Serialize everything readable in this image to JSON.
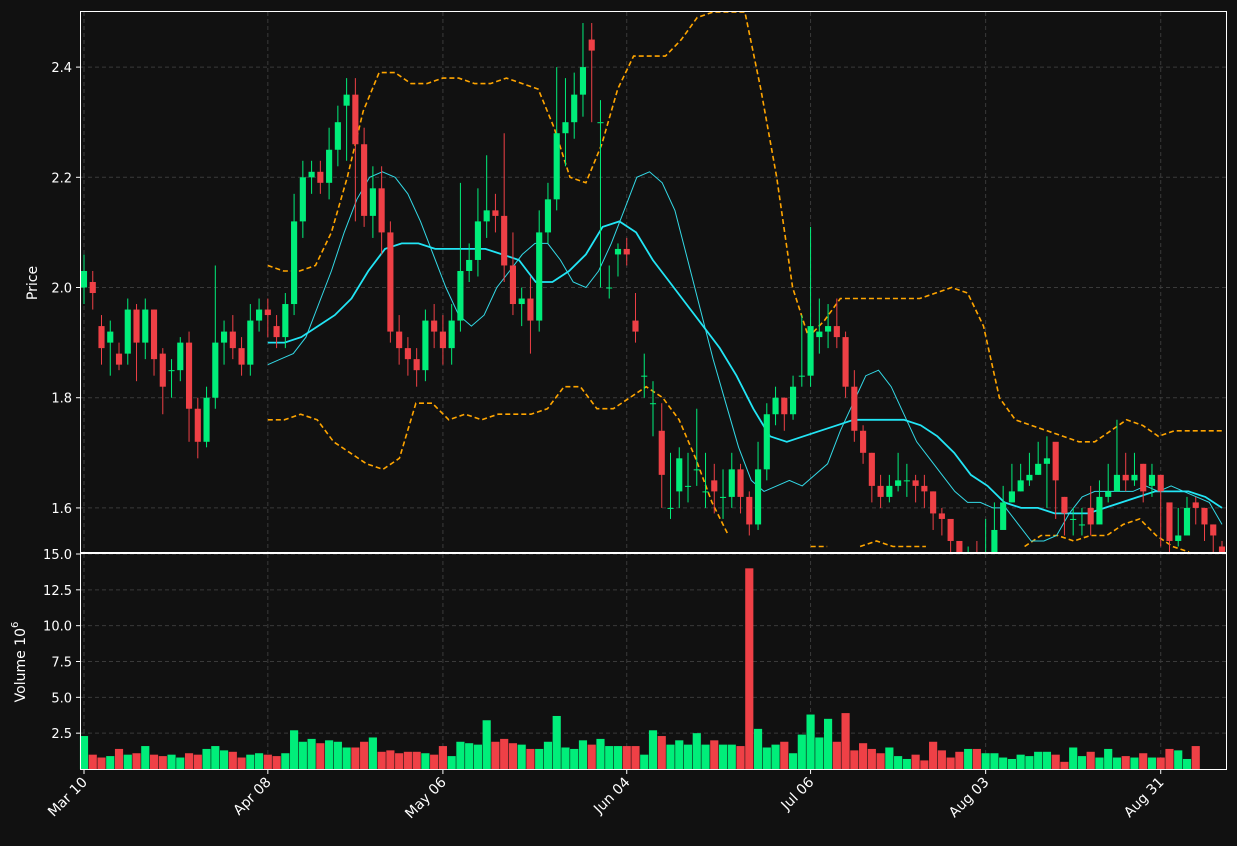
{
  "chart_data": {
    "type": "candlestick",
    "style": {
      "background": "#111111",
      "up_color": "#00ee7a",
      "down_color": "#ef4046",
      "ma_short_color": "#33d9e6",
      "ma_long_color": "#22e5f5",
      "band_color": "#ffa500",
      "grid_color": "#3a3a3a"
    },
    "price_panel": {
      "ylabel": "Price",
      "ylim": [
        1.52,
        2.5
      ],
      "yticks": [
        "1.6",
        "1.8",
        "2.0",
        "2.2",
        "2.4"
      ],
      "ytick_values": [
        1.6,
        1.8,
        2.0,
        2.2,
        2.4
      ],
      "grid": true
    },
    "volume_panel": {
      "ylabel": "Volume  10",
      "ylabel_exponent": "6",
      "ylim": [
        0,
        15
      ],
      "yticks": [
        "2.5",
        "5.0",
        "7.5",
        "10.0",
        "12.5",
        "15.0"
      ],
      "ytick_values": [
        2.5,
        5.0,
        7.5,
        10.0,
        12.5,
        15.0
      ],
      "grid": true
    },
    "x_axis": {
      "tick_labels": [
        "Mar 10",
        "Apr 08",
        "May 06",
        "Jun 04",
        "Jul 06",
        "Aug 03",
        "Aug 31"
      ],
      "tick_indices": [
        0,
        21,
        41,
        62,
        83,
        103,
        123
      ]
    },
    "ohlc_close": [
      2.03,
      1.99,
      1.89,
      1.92,
      1.86,
      1.96,
      1.9,
      1.96,
      1.87,
      1.82,
      1.85,
      1.9,
      1.78,
      1.72,
      1.8,
      1.9,
      1.92,
      1.89,
      1.86,
      1.94,
      1.96,
      1.95,
      1.91,
      1.97,
      2.12,
      2.2,
      2.21,
      2.19,
      2.25,
      2.3,
      2.35,
      2.26,
      2.13,
      2.18,
      2.1,
      1.92,
      1.89,
      1.87,
      1.85,
      1.94,
      1.92,
      1.89,
      1.94,
      2.03,
      2.05,
      2.12,
      2.14,
      2.13,
      2.04,
      1.97,
      1.98,
      1.94,
      2.1,
      2.16,
      2.28,
      2.3,
      2.35,
      2.4,
      2.43,
      2.3,
      2.0,
      2.07,
      2.06,
      1.92,
      1.84,
      1.79,
      1.66,
      1.6,
      1.69,
      1.64,
      1.67,
      1.63,
      1.63,
      1.62,
      1.67,
      1.62,
      1.57,
      1.67,
      1.77,
      1.8,
      1.77,
      1.82,
      1.84,
      1.93,
      1.92,
      1.93,
      1.91,
      1.82,
      1.74,
      1.7,
      1.64,
      1.62,
      1.64,
      1.65,
      1.65,
      1.64,
      1.63,
      1.59,
      1.58,
      1.54,
      1.49,
      1.51,
      1.48,
      1.5,
      1.56,
      1.61,
      1.63,
      1.65,
      1.66,
      1.68,
      1.69,
      1.65,
      1.59,
      1.58,
      1.57,
      1.57,
      1.62,
      1.63,
      1.66,
      1.65,
      1.66,
      1.63,
      1.66,
      1.63,
      1.54,
      1.55,
      1.6,
      1.6,
      1.57,
      1.55,
      1.51
    ],
    "ohlc_open": [
      2.0,
      2.01,
      1.93,
      1.9,
      1.88,
      1.88,
      1.96,
      1.9,
      1.96,
      1.88,
      1.85,
      1.85,
      1.9,
      1.78,
      1.72,
      1.8,
      1.9,
      1.92,
      1.89,
      1.86,
      1.94,
      1.96,
      1.93,
      1.91,
      1.97,
      2.12,
      2.2,
      2.21,
      2.19,
      2.25,
      2.33,
      2.35,
      2.26,
      2.13,
      2.18,
      2.1,
      1.92,
      1.89,
      1.87,
      1.85,
      1.94,
      1.92,
      1.89,
      1.94,
      2.03,
      2.05,
      2.12,
      2.14,
      2.13,
      2.04,
      1.97,
      1.98,
      1.94,
      2.1,
      2.16,
      2.28,
      2.3,
      2.35,
      2.45,
      2.3,
      2.0,
      2.06,
      2.07,
      1.94,
      1.84,
      1.79,
      1.74,
      1.6,
      1.63,
      1.64,
      1.67,
      1.63,
      1.65,
      1.62,
      1.62,
      1.67,
      1.62,
      1.57,
      1.67,
      1.77,
      1.8,
      1.77,
      1.84,
      1.84,
      1.91,
      1.92,
      1.93,
      1.91,
      1.82,
      1.74,
      1.7,
      1.64,
      1.62,
      1.64,
      1.65,
      1.65,
      1.64,
      1.63,
      1.59,
      1.58,
      1.54,
      1.49,
      1.51,
      1.48,
      1.5,
      1.56,
      1.61,
      1.63,
      1.65,
      1.66,
      1.68,
      1.72,
      1.62,
      1.58,
      1.57,
      1.6,
      1.57,
      1.62,
      1.63,
      1.66,
      1.65,
      1.68,
      1.64,
      1.66,
      1.61,
      1.54,
      1.55,
      1.61,
      1.6,
      1.57,
      1.53
    ],
    "ohlc_high": [
      2.06,
      2.03,
      1.95,
      1.94,
      1.9,
      1.98,
      1.97,
      1.98,
      1.96,
      1.89,
      1.87,
      1.91,
      1.92,
      1.8,
      1.82,
      2.04,
      1.94,
      1.95,
      1.91,
      1.97,
      1.98,
      1.98,
      1.95,
      1.99,
      2.17,
      2.23,
      2.23,
      2.23,
      2.29,
      2.33,
      2.38,
      2.38,
      2.29,
      2.22,
      2.22,
      2.12,
      1.95,
      1.91,
      1.89,
      1.96,
      1.97,
      1.95,
      1.97,
      2.19,
      2.08,
      2.18,
      2.24,
      2.17,
      2.28,
      2.1,
      2.0,
      2.02,
      2.14,
      2.19,
      2.4,
      2.38,
      2.39,
      2.48,
      2.48,
      2.34,
      2.04,
      2.08,
      2.09,
      1.99,
      1.88,
      1.83,
      1.79,
      1.7,
      1.71,
      1.7,
      1.78,
      1.7,
      1.68,
      1.67,
      1.7,
      1.68,
      1.63,
      1.72,
      1.79,
      1.82,
      1.8,
      1.84,
      1.95,
      2.11,
      1.98,
      1.97,
      1.98,
      1.92,
      1.85,
      1.75,
      1.7,
      1.66,
      1.66,
      1.7,
      1.68,
      1.66,
      1.66,
      1.63,
      1.6,
      1.57,
      1.53,
      1.53,
      1.54,
      1.58,
      1.61,
      1.64,
      1.68,
      1.68,
      1.7,
      1.72,
      1.73,
      1.67,
      1.62,
      1.6,
      1.6,
      1.64,
      1.65,
      1.68,
      1.76,
      1.7,
      1.7,
      1.68,
      1.68,
      1.65,
      1.56,
      1.6,
      1.62,
      1.62,
      1.59,
      1.57,
      1.54
    ],
    "ohlc_low": [
      1.97,
      1.96,
      1.86,
      1.84,
      1.85,
      1.86,
      1.83,
      1.87,
      1.84,
      1.77,
      1.8,
      1.83,
      1.72,
      1.69,
      1.71,
      1.78,
      1.86,
      1.87,
      1.84,
      1.84,
      1.92,
      1.91,
      1.89,
      1.89,
      1.95,
      2.09,
      2.17,
      2.17,
      2.16,
      2.22,
      2.23,
      2.12,
      2.11,
      2.09,
      2.06,
      1.9,
      1.86,
      1.84,
      1.82,
      1.83,
      1.89,
      1.86,
      1.86,
      1.92,
      2.01,
      2.02,
      2.09,
      2.1,
      2.01,
      1.95,
      1.93,
      1.88,
      1.92,
      2.08,
      2.14,
      2.22,
      2.27,
      2.31,
      2.3,
      2.0,
      1.98,
      2.02,
      2.04,
      1.9,
      1.8,
      1.73,
      1.6,
      1.58,
      1.6,
      1.61,
      1.64,
      1.6,
      1.59,
      1.58,
      1.6,
      1.59,
      1.55,
      1.56,
      1.65,
      1.75,
      1.74,
      1.76,
      1.82,
      1.82,
      1.88,
      1.89,
      1.89,
      1.8,
      1.72,
      1.68,
      1.61,
      1.6,
      1.61,
      1.63,
      1.62,
      1.61,
      1.6,
      1.56,
      1.55,
      1.5,
      1.47,
      1.48,
      1.46,
      1.48,
      1.54,
      1.59,
      1.61,
      1.63,
      1.64,
      1.66,
      1.6,
      1.58,
      1.55,
      1.55,
      1.55,
      1.55,
      1.59,
      1.61,
      1.63,
      1.63,
      1.64,
      1.61,
      1.62,
      1.53,
      1.51,
      1.53,
      1.58,
      1.57,
      1.54,
      1.51,
      1.48
    ],
    "volume": [
      2.3,
      1.0,
      0.8,
      0.9,
      1.4,
      1.0,
      1.1,
      1.6,
      1.0,
      0.9,
      1.0,
      0.8,
      1.1,
      1.0,
      1.4,
      1.6,
      1.3,
      1.2,
      0.8,
      1.0,
      1.1,
      1.0,
      0.9,
      1.1,
      2.7,
      1.9,
      2.1,
      1.8,
      2.0,
      1.9,
      1.5,
      1.5,
      1.9,
      2.2,
      1.2,
      1.3,
      1.1,
      1.2,
      1.2,
      1.1,
      1.0,
      1.6,
      0.9,
      1.9,
      1.8,
      1.7,
      3.4,
      1.9,
      2.1,
      1.8,
      1.7,
      1.4,
      1.4,
      1.9,
      3.7,
      1.5,
      1.4,
      2.0,
      1.7,
      2.1,
      1.6,
      1.6,
      1.6,
      1.6,
      1.0,
      2.7,
      2.3,
      1.7,
      2.0,
      1.7,
      2.5,
      1.7,
      2.0,
      1.7,
      1.7,
      1.6,
      14.0,
      2.8,
      1.5,
      1.7,
      1.9,
      1.1,
      2.4,
      3.8,
      2.2,
      3.5,
      1.9,
      3.9,
      1.3,
      1.8,
      1.4,
      1.1,
      1.5,
      0.9,
      0.7,
      1.0,
      0.6,
      1.9,
      1.3,
      0.8,
      1.2,
      1.4,
      1.4,
      1.1,
      1.1,
      0.8,
      0.7,
      1.0,
      0.9,
      1.2,
      1.2,
      1.0,
      0.5,
      1.5,
      0.9,
      1.2,
      0.8,
      1.4,
      0.8,
      0.9,
      0.8,
      1.1,
      0.8,
      0.8,
      1.4,
      1.3,
      0.7,
      1.6
    ],
    "ma_short": [
      null,
      null,
      null,
      null,
      null,
      null,
      null,
      null,
      null,
      null,
      null,
      null,
      null,
      null,
      null,
      null,
      null,
      null,
      null,
      null,
      null,
      1.86,
      1.87,
      1.88,
      1.91,
      1.97,
      2.03,
      2.1,
      2.16,
      2.2,
      2.21,
      2.2,
      2.17,
      2.12,
      2.06,
      2.0,
      1.95,
      1.93,
      1.95,
      2.0,
      2.03,
      2.06,
      2.08,
      2.08,
      2.05,
      2.01,
      2.0,
      2.03,
      2.08,
      2.14,
      2.2,
      2.21,
      2.19,
      2.14,
      2.05,
      1.96,
      1.87,
      1.79,
      1.71,
      1.65,
      1.63,
      1.64,
      1.65,
      1.64,
      1.66,
      1.68,
      1.74,
      1.79,
      1.84,
      1.85,
      1.82,
      1.77,
      1.72,
      1.69,
      1.66,
      1.63,
      1.61,
      1.61,
      1.6,
      1.6,
      1.57,
      1.54,
      1.54,
      1.55,
      1.59,
      1.62,
      1.63,
      1.63,
      1.63,
      1.63,
      1.64,
      1.63,
      1.64,
      1.63,
      1.62,
      1.61,
      1.57
    ],
    "ma_long": [
      null,
      null,
      null,
      null,
      null,
      null,
      null,
      null,
      null,
      null,
      null,
      null,
      null,
      null,
      null,
      null,
      null,
      null,
      null,
      null,
      null,
      1.9,
      1.9,
      1.91,
      1.93,
      1.95,
      1.98,
      2.03,
      2.07,
      2.08,
      2.08,
      2.07,
      2.07,
      2.07,
      2.07,
      2.06,
      2.05,
      2.01,
      2.01,
      2.03,
      2.06,
      2.11,
      2.12,
      2.1,
      2.05,
      2.01,
      1.97,
      1.93,
      1.89,
      1.84,
      1.78,
      1.73,
      1.72,
      1.73,
      1.74,
      1.75,
      1.76,
      1.76,
      1.76,
      1.76,
      1.75,
      1.73,
      1.7,
      1.66,
      1.64,
      1.61,
      1.6,
      1.6,
      1.59,
      1.59,
      1.59,
      1.6,
      1.61,
      1.62,
      1.63,
      1.63,
      1.63,
      1.62,
      1.6
    ],
    "band_upper": [
      null,
      null,
      null,
      null,
      null,
      null,
      null,
      null,
      null,
      null,
      null,
      null,
      null,
      null,
      null,
      null,
      null,
      null,
      null,
      null,
      null,
      2.04,
      2.03,
      2.03,
      2.04,
      2.1,
      2.2,
      2.32,
      2.39,
      2.39,
      2.37,
      2.37,
      2.38,
      2.38,
      2.37,
      2.37,
      2.38,
      2.37,
      2.36,
      2.29,
      2.2,
      2.19,
      2.26,
      2.36,
      2.42,
      2.42,
      2.42,
      2.45,
      2.49,
      2.5,
      2.5,
      2.5,
      2.36,
      2.2,
      2.0,
      1.91,
      1.94,
      1.98,
      1.98,
      1.98,
      1.98,
      1.98,
      1.98,
      1.99,
      2.0,
      1.99,
      1.93,
      1.8,
      1.76,
      1.75,
      1.74,
      1.73,
      1.72,
      1.72,
      1.74,
      1.76,
      1.75,
      1.73,
      1.74,
      1.74,
      1.74,
      1.74
    ],
    "band_lower": [
      null,
      null,
      null,
      null,
      null,
      null,
      null,
      null,
      null,
      null,
      null,
      null,
      null,
      null,
      null,
      null,
      null,
      null,
      null,
      null,
      null,
      1.76,
      1.76,
      1.77,
      1.76,
      1.72,
      1.7,
      1.68,
      1.67,
      1.69,
      1.79,
      1.79,
      1.76,
      1.77,
      1.76,
      1.77,
      1.77,
      1.77,
      1.78,
      1.82,
      1.82,
      1.78,
      1.78,
      1.8,
      1.82,
      1.8,
      1.76,
      1.69,
      1.61,
      1.55,
      1.49,
      1.44,
      1.4,
      1.47,
      1.53,
      1.53,
      1.51,
      1.53,
      1.54,
      1.53,
      1.53,
      1.53,
      1.51,
      1.47,
      1.43,
      1.4,
      1.45,
      1.53,
      1.55,
      1.55,
      1.54,
      1.55,
      1.55,
      1.57,
      1.58,
      1.55,
      1.53,
      1.52,
      1.5,
      1.46
    ]
  }
}
